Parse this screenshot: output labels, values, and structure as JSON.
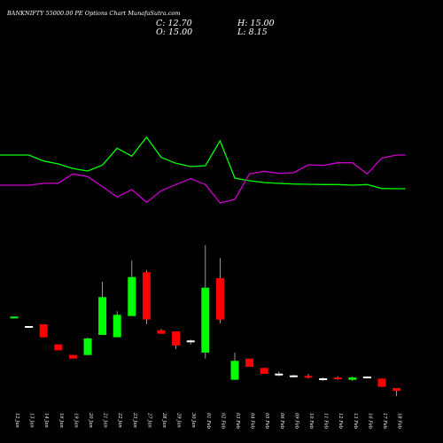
{
  "header": {
    "title": "BANKNIFTY 55000.00 PE Options Chart MunafaSutra.com",
    "close_label": "C: 12.70",
    "high_label": "H: 15.00",
    "open_label": "O: 15.00",
    "low_label": "L: 8.15"
  },
  "colors": {
    "background": "#000000",
    "up": "#00ff00",
    "down": "#ff0000",
    "doji": "#ffffff",
    "line_green": "#00ff00",
    "line_magenta": "#cc00cc",
    "text": "#ffffff"
  },
  "chart_data": {
    "type": "candlestick",
    "title": "BANKNIFTY 55000.00 PE Options Chart MunafaSutra.com",
    "categories": [
      "12 Jan",
      "13 Jan",
      "14 Jan",
      "16 Jan",
      "19 Jan",
      "20 Jan",
      "21 Jan",
      "22 Jan",
      "23 Jan",
      "27 Jan",
      "28 Jan",
      "29 Jan",
      "30 Jan",
      "01 Feb",
      "02 Feb",
      "03 Feb",
      "04 Feb",
      "05 Feb",
      "06 Feb",
      "09 Feb",
      "10 Feb",
      "11 Feb",
      "12 Feb",
      "13 Feb",
      "16 Feb",
      "17 Feb",
      "18 Feb"
    ],
    "candles": [
      {
        "o": 75.0,
        "h": 75.0,
        "l": 74.0,
        "c": 74.5,
        "color": "up"
      },
      {
        "o": 67.0,
        "h": 67.0,
        "l": 66.0,
        "c": 66.5,
        "color": "doji"
      },
      {
        "o": 69.0,
        "h": 69.0,
        "l": 58.0,
        "c": 58.0,
        "color": "down"
      },
      {
        "o": 52.0,
        "h": 52.0,
        "l": 47.0,
        "c": 47.0,
        "color": "down"
      },
      {
        "o": 43.0,
        "h": 43.0,
        "l": 40.0,
        "c": 40.0,
        "color": "down"
      },
      {
        "o": 43.0,
        "h": 58.0,
        "l": 43.0,
        "c": 57.0,
        "color": "up"
      },
      {
        "o": 60.0,
        "h": 105.0,
        "l": 60.0,
        "c": 92.0,
        "color": "up"
      },
      {
        "o": 58.0,
        "h": 80.0,
        "l": 58.0,
        "c": 77.0,
        "color": "up"
      },
      {
        "o": 76.0,
        "h": 123.0,
        "l": 76.0,
        "c": 109.0,
        "color": "up"
      },
      {
        "o": 113.0,
        "h": 115.0,
        "l": 69.0,
        "c": 73.0,
        "color": "down"
      },
      {
        "o": 64.0,
        "h": 65.0,
        "l": 61.0,
        "c": 61.0,
        "color": "down"
      },
      {
        "o": 63.0,
        "h": 63.0,
        "l": 48.0,
        "c": 51.0,
        "color": "down"
      },
      {
        "o": 55.0,
        "h": 56.0,
        "l": 52.0,
        "c": 54.0,
        "color": "doji"
      },
      {
        "o": 45.0,
        "h": 136.0,
        "l": 40.0,
        "c": 100.0,
        "color": "up"
      },
      {
        "o": 108.0,
        "h": 125.0,
        "l": 70.0,
        "c": 73.0,
        "color": "down"
      },
      {
        "o": 22.0,
        "h": 45.0,
        "l": 22.0,
        "c": 38.0,
        "color": "up"
      },
      {
        "o": 40.0,
        "h": 40.0,
        "l": 33.0,
        "c": 33.0,
        "color": "down"
      },
      {
        "o": 32.0,
        "h": 32.0,
        "l": 27.0,
        "c": 27.0,
        "color": "down"
      },
      {
        "o": 27.0,
        "h": 29.0,
        "l": 25.0,
        "c": 26.0,
        "color": "doji"
      },
      {
        "o": 25.0,
        "h": 26.0,
        "l": 24.0,
        "c": 25.0,
        "color": "doji"
      },
      {
        "o": 25.0,
        "h": 27.0,
        "l": 23.0,
        "c": 24.0,
        "color": "down"
      },
      {
        "o": 23.0,
        "h": 24.0,
        "l": 21.0,
        "c": 22.0,
        "color": "doji"
      },
      {
        "o": 24.0,
        "h": 25.0,
        "l": 22.0,
        "c": 22.5,
        "color": "down"
      },
      {
        "o": 22.0,
        "h": 25.0,
        "l": 21.0,
        "c": 24.0,
        "color": "up"
      },
      {
        "o": 24.0,
        "h": 25.0,
        "l": 23.0,
        "c": 24.0,
        "color": "doji"
      },
      {
        "o": 23.0,
        "h": 23.0,
        "l": 16.0,
        "c": 16.0,
        "color": "down"
      },
      {
        "o": 15.0,
        "h": 15.0,
        "l": 8.15,
        "c": 12.7,
        "color": "down"
      }
    ],
    "ylim": [
      0,
      150
    ],
    "indicator_lines": [
      {
        "color": "green",
        "values": [
          21.0,
          21.0,
          19.0,
          18.0,
          16.4,
          15.6,
          17.6,
          23.3,
          20.6,
          27.1,
          20.2,
          18.2,
          17.1,
          17.4,
          25.8,
          13.2,
          12.3,
          11.7,
          11.4,
          11.2,
          11.1,
          11.0,
          11.0,
          10.8,
          11.0,
          9.7,
          9.6
        ]
      },
      {
        "color": "magenta",
        "values": [
          10.8,
          10.8,
          11.4,
          11.5,
          14.6,
          13.7,
          10.3,
          6.8,
          9.3,
          5.0,
          8.9,
          11.0,
          13.0,
          11.0,
          4.8,
          6.0,
          14.6,
          15.5,
          14.8,
          15.0,
          17.7,
          17.5,
          18.4,
          18.4,
          14.6,
          20.0,
          21.0
        ]
      }
    ],
    "indicator_ylim": [
      0,
      45
    ],
    "last_close_ref": 12.7
  }
}
